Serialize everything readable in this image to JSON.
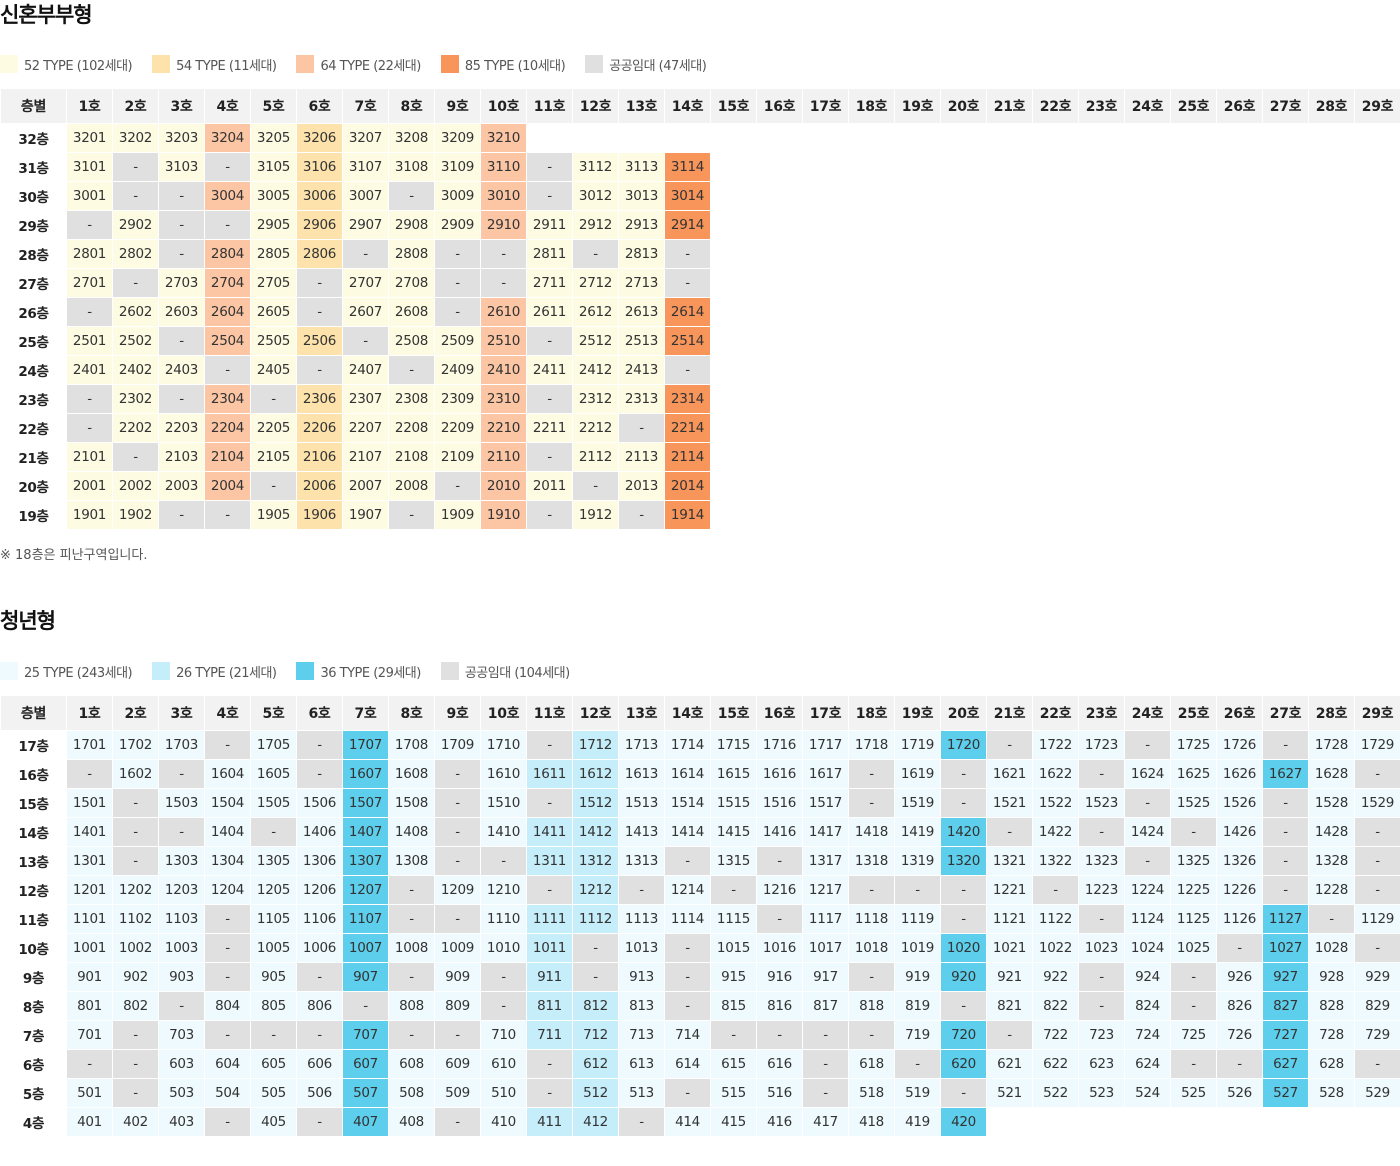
{
  "sections": [
    {
      "title": "신혼부부형",
      "legend": [
        {
          "label": "52 TYPE (102세대)",
          "color": "#fefbe3"
        },
        {
          "label": "54 TYPE (11세대)",
          "color": "#fde3ab"
        },
        {
          "label": "64 TYPE (22세대)",
          "color": "#fcc6a4"
        },
        {
          "label": "85 TYPE (10세대)",
          "color": "#f8955a"
        },
        {
          "label": "공공임대 (47세대)",
          "color": "#e0e0e0"
        }
      ],
      "column_types": [
        0,
        0,
        0,
        2,
        0,
        1,
        0,
        0,
        0,
        2,
        0,
        0,
        0,
        3
      ],
      "dash_type": 4,
      "header": [
        "층별",
        "1호",
        "2호",
        "3호",
        "4호",
        "5호",
        "6호",
        "7호",
        "8호",
        "9호",
        "10호",
        "11호",
        "12호",
        "13호",
        "14호",
        "15호",
        "16호",
        "17호",
        "18호",
        "19호",
        "20호",
        "21호",
        "22호",
        "23호",
        "24호",
        "25호",
        "26호",
        "27호",
        "28호",
        "29호"
      ],
      "rows": [
        {
          "floor": "32층",
          "cells": [
            "3201",
            "3202",
            "3203",
            "3204",
            "3205",
            "3206",
            "3207",
            "3208",
            "3209",
            "3210"
          ]
        },
        {
          "floor": "31층",
          "cells": [
            "3101",
            "-",
            "3103",
            "-",
            "3105",
            "3106",
            "3107",
            "3108",
            "3109",
            "3110",
            "-",
            "3112",
            "3113",
            "3114"
          ]
        },
        {
          "floor": "30층",
          "cells": [
            "3001",
            "-",
            "-",
            "3004",
            "3005",
            "3006",
            "3007",
            "-",
            "3009",
            "3010",
            "-",
            "3012",
            "3013",
            "3014"
          ]
        },
        {
          "floor": "29층",
          "cells": [
            "-",
            "2902",
            "-",
            "-",
            "2905",
            "2906",
            "2907",
            "2908",
            "2909",
            "2910",
            "2911",
            "2912",
            "2913",
            "2914"
          ]
        },
        {
          "floor": "28층",
          "cells": [
            "2801",
            "2802",
            "-",
            "2804",
            "2805",
            "2806",
            "-",
            "2808",
            "-",
            "-",
            "2811",
            "-",
            "2813",
            "-"
          ]
        },
        {
          "floor": "27층",
          "cells": [
            "2701",
            "-",
            "2703",
            "2704",
            "2705",
            "-",
            "2707",
            "2708",
            "-",
            "-",
            "2711",
            "2712",
            "2713",
            "-"
          ]
        },
        {
          "floor": "26층",
          "cells": [
            "-",
            "2602",
            "2603",
            "2604",
            "2605",
            "-",
            "2607",
            "2608",
            "-",
            "2610",
            "2611",
            "2612",
            "2613",
            "2614"
          ]
        },
        {
          "floor": "25층",
          "cells": [
            "2501",
            "2502",
            "-",
            "2504",
            "2505",
            "2506",
            "-",
            "2508",
            "2509",
            "2510",
            "-",
            "2512",
            "2513",
            "2514"
          ]
        },
        {
          "floor": "24층",
          "cells": [
            "2401",
            "2402",
            "2403",
            "-",
            "2405",
            "-",
            "2407",
            "-",
            "2409",
            "2410",
            "2411",
            "2412",
            "2413",
            "-"
          ]
        },
        {
          "floor": "23층",
          "cells": [
            "-",
            "2302",
            "-",
            "2304",
            "-",
            "2306",
            "2307",
            "2308",
            "2309",
            "2310",
            "-",
            "2312",
            "2313",
            "2314"
          ]
        },
        {
          "floor": "22층",
          "cells": [
            "-",
            "2202",
            "2203",
            "2204",
            "2205",
            "2206",
            "2207",
            "2208",
            "2209",
            "2210",
            "2211",
            "2212",
            "-",
            "2214"
          ]
        },
        {
          "floor": "21층",
          "cells": [
            "2101",
            "-",
            "2103",
            "2104",
            "2105",
            "2106",
            "2107",
            "2108",
            "2109",
            "2110",
            "-",
            "2112",
            "2113",
            "2114"
          ]
        },
        {
          "floor": "20층",
          "cells": [
            "2001",
            "2002",
            "2003",
            "2004",
            "-",
            "2006",
            "2007",
            "2008",
            "-",
            "2010",
            "2011",
            "-",
            "2013",
            "2014"
          ]
        },
        {
          "floor": "19층",
          "cells": [
            "1901",
            "1902",
            "-",
            "-",
            "1905",
            "1906",
            "1907",
            "-",
            "1909",
            "1910",
            "-",
            "1912",
            "-",
            "1914"
          ]
        }
      ],
      "note": "※ 18층은 피난구역입니다."
    },
    {
      "title": "청년형",
      "legend": [
        {
          "label": "25 TYPE (243세대)",
          "color": "#eefafd"
        },
        {
          "label": "26 TYPE (21세대)",
          "color": "#c6eefa"
        },
        {
          "label": "36 TYPE (29세대)",
          "color": "#5dcfec"
        },
        {
          "label": "공공임대 (104세대)",
          "color": "#e0e0e0"
        }
      ],
      "column_types": [
        0,
        0,
        0,
        0,
        0,
        0,
        2,
        0,
        0,
        0,
        1,
        1,
        0,
        0,
        0,
        0,
        0,
        0,
        0,
        2,
        0,
        0,
        0,
        0,
        0,
        0,
        2,
        0,
        0
      ],
      "dash_type": 3,
      "header": [
        "층별",
        "1호",
        "2호",
        "3호",
        "4호",
        "5호",
        "6호",
        "7호",
        "8호",
        "9호",
        "10호",
        "11호",
        "12호",
        "13호",
        "14호",
        "15호",
        "16호",
        "17호",
        "18호",
        "19호",
        "20호",
        "21호",
        "22호",
        "23호",
        "24호",
        "25호",
        "26호",
        "27호",
        "28호",
        "29호"
      ],
      "rows": [
        {
          "floor": "17층",
          "cells": [
            "1701",
            "1702",
            "1703",
            "-",
            "1705",
            "-",
            "1707",
            "1708",
            "1709",
            "1710",
            "-",
            "1712",
            "1713",
            "1714",
            "1715",
            "1716",
            "1717",
            "1718",
            "1719",
            "1720",
            "-",
            "1722",
            "1723",
            "-",
            "1725",
            "1726",
            "-",
            "1728",
            "1729"
          ]
        },
        {
          "floor": "16층",
          "cells": [
            "-",
            "1602",
            "-",
            "1604",
            "1605",
            "-",
            "1607",
            "1608",
            "-",
            "1610",
            "1611",
            "1612",
            "1613",
            "1614",
            "1615",
            "1616",
            "1617",
            "-",
            "1619",
            "-",
            "1621",
            "1622",
            "-",
            "1624",
            "1625",
            "1626",
            "1627",
            "1628",
            "-"
          ]
        },
        {
          "floor": "15층",
          "cells": [
            "1501",
            "-",
            "1503",
            "1504",
            "1505",
            "1506",
            "1507",
            "1508",
            "-",
            "1510",
            "-",
            "1512",
            "1513",
            "1514",
            "1515",
            "1516",
            "1517",
            "-",
            "1519",
            "-",
            "1521",
            "1522",
            "1523",
            "-",
            "1525",
            "1526",
            "-",
            "1528",
            "1529"
          ]
        },
        {
          "floor": "14층",
          "cells": [
            "1401",
            "-",
            "-",
            "1404",
            "-",
            "1406",
            "1407",
            "1408",
            "-",
            "1410",
            "1411",
            "1412",
            "1413",
            "1414",
            "1415",
            "1416",
            "1417",
            "1418",
            "1419",
            "1420",
            "-",
            "1422",
            "-",
            "1424",
            "-",
            "1426",
            "-",
            "1428",
            "-"
          ]
        },
        {
          "floor": "13층",
          "cells": [
            "1301",
            "-",
            "1303",
            "1304",
            "1305",
            "1306",
            "1307",
            "1308",
            "-",
            "-",
            "1311",
            "1312",
            "1313",
            "-",
            "1315",
            "-",
            "1317",
            "1318",
            "1319",
            "1320",
            "1321",
            "1322",
            "1323",
            "-",
            "1325",
            "1326",
            "-",
            "1328",
            "-"
          ]
        },
        {
          "floor": "12층",
          "cells": [
            "1201",
            "1202",
            "1203",
            "1204",
            "1205",
            "1206",
            "1207",
            "-",
            "1209",
            "1210",
            "-",
            "1212",
            "-",
            "1214",
            "-",
            "1216",
            "1217",
            "-",
            "-",
            "-",
            "1221",
            "-",
            "1223",
            "1224",
            "1225",
            "1226",
            "-",
            "1228",
            "-"
          ]
        },
        {
          "floor": "11층",
          "cells": [
            "1101",
            "1102",
            "1103",
            "-",
            "1105",
            "1106",
            "1107",
            "-",
            "-",
            "1110",
            "1111",
            "1112",
            "1113",
            "1114",
            "1115",
            "-",
            "1117",
            "1118",
            "1119",
            "-",
            "1121",
            "1122",
            "-",
            "1124",
            "1125",
            "1126",
            "1127",
            "-",
            "1129"
          ]
        },
        {
          "floor": "10층",
          "cells": [
            "1001",
            "1002",
            "1003",
            "-",
            "1005",
            "1006",
            "1007",
            "1008",
            "1009",
            "1010",
            "1011",
            "-",
            "1013",
            "-",
            "1015",
            "1016",
            "1017",
            "1018",
            "1019",
            "1020",
            "1021",
            "1022",
            "1023",
            "1024",
            "1025",
            "-",
            "1027",
            "1028",
            "-"
          ]
        },
        {
          "floor": "9층",
          "cells": [
            "901",
            "902",
            "903",
            "-",
            "905",
            "-",
            "907",
            "-",
            "909",
            "-",
            "911",
            "-",
            "913",
            "-",
            "915",
            "916",
            "917",
            "-",
            "919",
            "920",
            "921",
            "922",
            "-",
            "924",
            "-",
            "926",
            "927",
            "928",
            "929"
          ]
        },
        {
          "floor": "8층",
          "cells": [
            "801",
            "802",
            "-",
            "804",
            "805",
            "806",
            "-",
            "808",
            "809",
            "-",
            "811",
            "812",
            "813",
            "-",
            "815",
            "816",
            "817",
            "818",
            "819",
            "-",
            "821",
            "822",
            "-",
            "824",
            "-",
            "826",
            "827",
            "828",
            "829"
          ]
        },
        {
          "floor": "7층",
          "cells": [
            "701",
            "-",
            "703",
            "-",
            "-",
            "-",
            "707",
            "-",
            "-",
            "710",
            "711",
            "712",
            "713",
            "714",
            "-",
            "-",
            "-",
            "-",
            "719",
            "720",
            "-",
            "722",
            "723",
            "724",
            "725",
            "726",
            "727",
            "728",
            "729"
          ]
        },
        {
          "floor": "6층",
          "cells": [
            "-",
            "-",
            "603",
            "604",
            "605",
            "606",
            "607",
            "608",
            "609",
            "610",
            "-",
            "612",
            "613",
            "614",
            "615",
            "616",
            "-",
            "618",
            "-",
            "620",
            "621",
            "622",
            "623",
            "624",
            "-",
            "-",
            "627",
            "628",
            "-"
          ]
        },
        {
          "floor": "5층",
          "cells": [
            "501",
            "-",
            "503",
            "504",
            "505",
            "506",
            "507",
            "508",
            "509",
            "510",
            "-",
            "512",
            "513",
            "-",
            "515",
            "516",
            "-",
            "518",
            "519",
            "-",
            "521",
            "522",
            "523",
            "524",
            "525",
            "526",
            "527",
            "528",
            "529"
          ]
        },
        {
          "floor": "4층",
          "cells": [
            "401",
            "402",
            "403",
            "-",
            "405",
            "-",
            "407",
            "408",
            "-",
            "410",
            "411",
            "412",
            "-",
            "414",
            "415",
            "416",
            "417",
            "418",
            "419",
            "420"
          ]
        }
      ]
    }
  ]
}
